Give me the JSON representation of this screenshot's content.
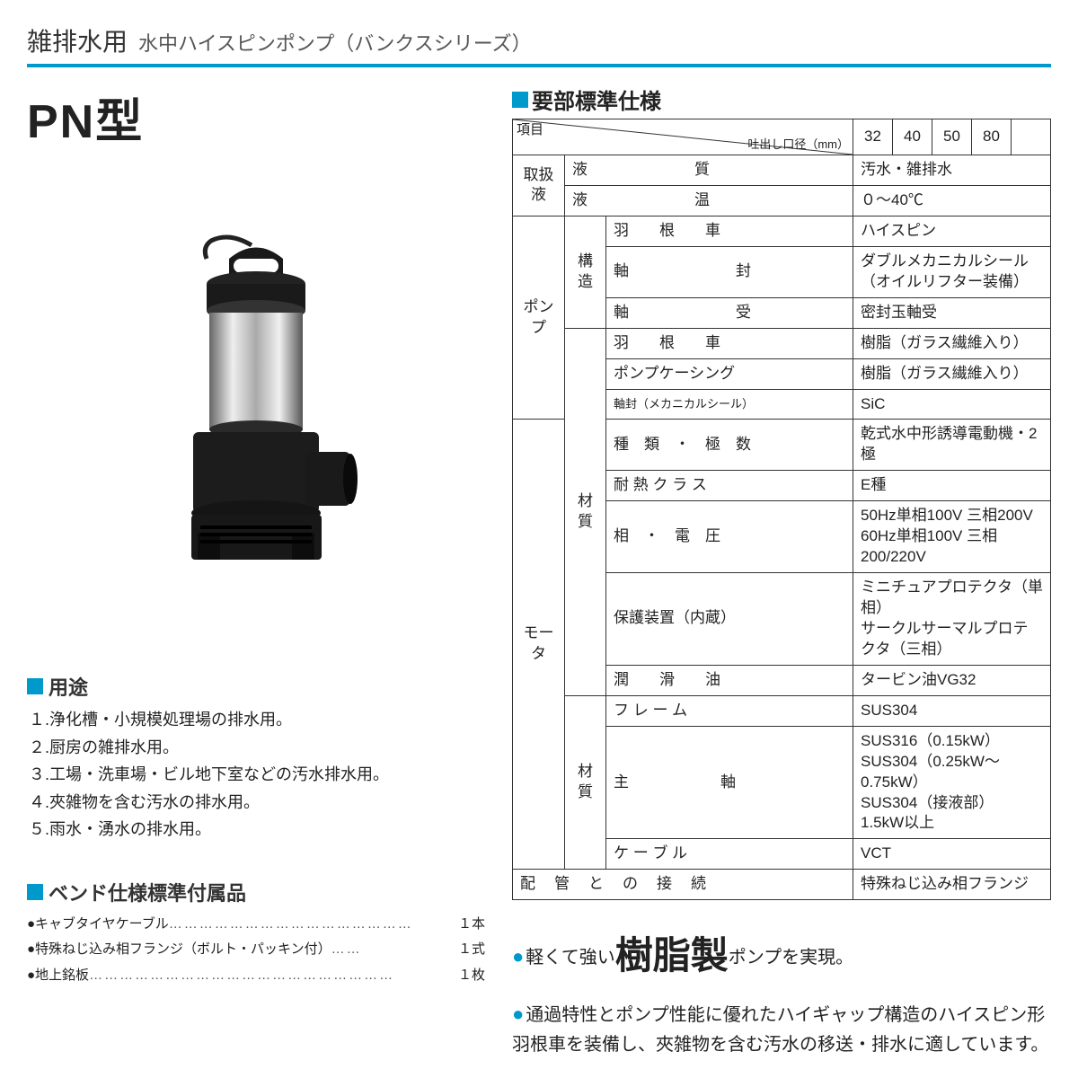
{
  "header": {
    "main": "雑排水用",
    "sub": "水中ハイスピンポンプ（バンクスシリーズ）"
  },
  "model": "PN型",
  "usage": {
    "title": "用途",
    "items": [
      "１.浄化槽・小規模処理場の排水用。",
      "２.厨房の雑排水用。",
      "３.工場・洗車場・ビル地下室などの汚水排水用。",
      "４.夾雑物を含む汚水の排水用。",
      "５.雨水・湧水の排水用。"
    ]
  },
  "accessories": {
    "title": "ベンド仕様標準付属品",
    "items": [
      {
        "label": "●キャブタイヤケーブル",
        "qty": "１本"
      },
      {
        "label": "●特殊ねじ込み相フランジ（ボルト・パッキン付）",
        "qty": "１式"
      },
      {
        "label": "●地上銘板",
        "qty": "１枚"
      }
    ]
  },
  "spec": {
    "title": "要部標準仕様",
    "hdr_item": "項目",
    "hdr_diam": "吐出し口径（mm）",
    "sizes": [
      "32",
      "40",
      "50",
      "80"
    ],
    "rows": [
      {
        "g": "取扱液",
        "s": "",
        "l": "液　　　　　　　質",
        "v": "汚水・雑排水"
      },
      {
        "g": "",
        "s": "",
        "l": "液　　　　　　　温",
        "v": "０～40℃"
      },
      {
        "g": "ポンプ",
        "s": "構造",
        "l": "羽　　根　　車",
        "v": "ハイスピン"
      },
      {
        "g": "",
        "s": "",
        "l": "軸　　　　　　　封",
        "v": "ダブルメカニカルシール\n（オイルリフター装備）"
      },
      {
        "g": "",
        "s": "",
        "l": "軸　　　　　　　受",
        "v": "密封玉軸受"
      },
      {
        "g": "",
        "s": "材質",
        "l": "羽　　根　　車",
        "v": "樹脂（ガラス繊維入り）"
      },
      {
        "g": "",
        "s": "",
        "l": "ポンプケーシング",
        "v": "樹脂（ガラス繊維入り）"
      },
      {
        "g": "",
        "s": "",
        "l": "軸封（メカニカルシール）",
        "v": "SiC"
      },
      {
        "g": "モータ",
        "s": "",
        "l": "種　類　・　極　数",
        "v": "乾式水中形誘導電動機・2極"
      },
      {
        "g": "",
        "s": "",
        "l": "耐 熱 ク ラ ス",
        "v": "E種"
      },
      {
        "g": "",
        "s": "",
        "l": "相　・　電　圧",
        "v": "50Hz単相100V 三相200V\n60Hz単相100V 三相200/220V"
      },
      {
        "g": "",
        "s": "",
        "l": "保護装置（内蔵）",
        "v": "ミニチュアプロテクタ（単相）\nサークルサーマルプロテクタ（三相）"
      },
      {
        "g": "",
        "s": "",
        "l": "潤　　滑　　油",
        "v": "タービン油VG32"
      },
      {
        "g": "",
        "s": "材質",
        "l": "フ レ ー ム",
        "v": "SUS304"
      },
      {
        "g": "",
        "s": "",
        "l": "主　　　　　　軸",
        "v": "SUS316（0.15kW）\nSUS304（0.25kW～0.75kW）\nSUS304（接液部）　1.5kW以上"
      },
      {
        "g": "",
        "s": "",
        "l": "ケ ー ブ ル",
        "v": "VCT"
      },
      {
        "g": "配　管　と　の　接　続",
        "span": 3,
        "v": "特殊ねじ込み相フランジ"
      }
    ]
  },
  "promo": {
    "line1_pre": "軽くて強い",
    "line1_big": "樹脂製",
    "line1_post": "ポンプを実現。",
    "line2": "通過特性とポンプ性能に優れたハイギャップ構造のハイスピン形羽根車を装備し、夾雑物を含む汚水の移送・排水に適しています。"
  },
  "colors": {
    "accent": "#0099cc",
    "border": "#333333"
  }
}
